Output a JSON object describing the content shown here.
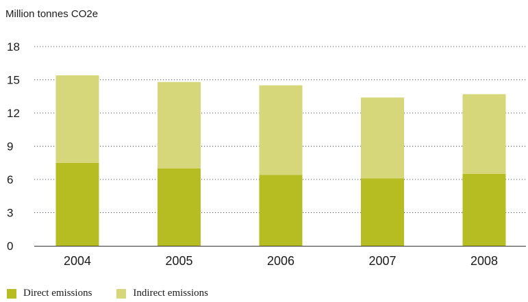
{
  "chart_data": {
    "type": "bar",
    "stacked": true,
    "unit_label": "Million tonnes CO2e",
    "categories": [
      "2004",
      "2005",
      "2006",
      "2007",
      "2008"
    ],
    "series": [
      {
        "name": "Direct emissions",
        "color": "#b5bd22",
        "values": [
          7.5,
          7.0,
          6.4,
          6.1,
          6.5
        ]
      },
      {
        "name": "Indirect emissions",
        "color": "#d6d77a",
        "values": [
          7.9,
          7.8,
          8.1,
          7.3,
          7.2
        ]
      }
    ],
    "ylim": [
      0,
      18
    ],
    "yticks": [
      "0",
      "3",
      "6",
      "9",
      "12",
      "15",
      "18"
    ],
    "grid": "dotted horizontal",
    "legend_position": "bottom-left"
  }
}
